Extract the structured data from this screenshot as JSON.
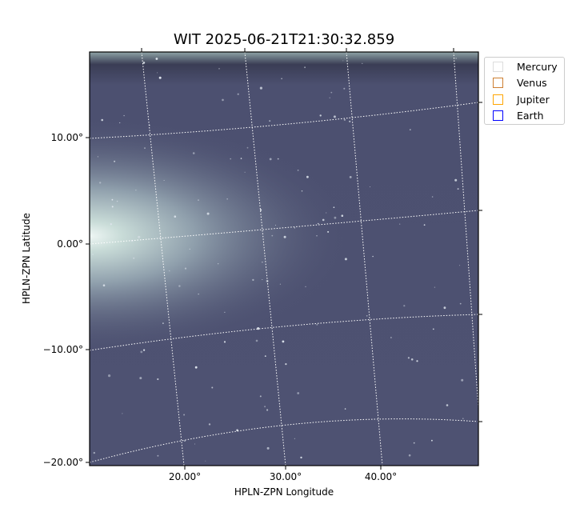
{
  "chart_data": {
    "type": "image",
    "title": "WIT 2025-06-21T21:30:32.859",
    "xlabel": "HPLN-ZPN Longitude",
    "ylabel": "HPLN-ZPN Latitude",
    "x_ticks": [
      "20.00°",
      "30.00°",
      "40.00°"
    ],
    "y_ticks": [
      "10.00°",
      "0.00°",
      "−10.00°",
      "−20.00°"
    ],
    "grid": "dotted white coordinate grid",
    "colormap": "bone-like gray-blue",
    "legend_position": "outside top-right",
    "legend": [
      {
        "label": "Mercury",
        "color": "#dddddd"
      },
      {
        "label": "Venus",
        "color": "#cd7f32"
      },
      {
        "label": "Jupiter",
        "color": "#ffa500"
      },
      {
        "label": "Earth",
        "color": "#0000ff"
      }
    ]
  }
}
